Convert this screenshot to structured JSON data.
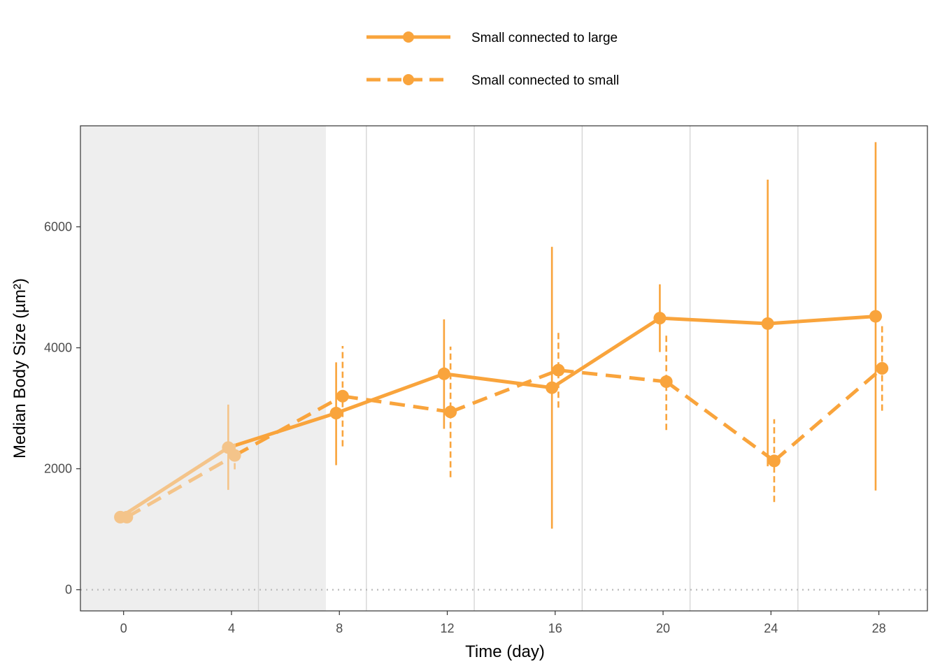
{
  "colors": {
    "series": "#f9a43c",
    "series_faded": "#f4c48a",
    "panel_border": "#333333",
    "vline": "#d3d3d3",
    "shade": "#eeeeee",
    "zero_line": "#bbbbbb"
  },
  "chart_data": {
    "type": "line",
    "xlabel": "Time (day)",
    "ylabel": "Median Body Size (µm²)",
    "xlim": [
      -1.6,
      29.8
    ],
    "ylim": [
      -350,
      7670
    ],
    "x_ticks": [
      0,
      4,
      8,
      12,
      16,
      20,
      24,
      28
    ],
    "y_ticks": [
      0,
      2000,
      4000,
      6000
    ],
    "shaded_x_range": [
      -1.6,
      7.5
    ],
    "vertical_lines_x": [
      5,
      9,
      13,
      17,
      21,
      25
    ],
    "reference_line_y": 0,
    "legend_position": "top",
    "series": [
      {
        "name": "Small connected to large",
        "line_style": "solid",
        "x": [
          0,
          4,
          8,
          12,
          16,
          20,
          24,
          28
        ],
        "y": [
          1200,
          2350,
          2920,
          3570,
          3340,
          4490,
          4400,
          4520
        ],
        "y_low": [
          null,
          1650,
          2060,
          2660,
          1010,
          3930,
          2040,
          1640
        ],
        "y_high": [
          null,
          3060,
          3760,
          4470,
          5670,
          5050,
          6780,
          7400
        ]
      },
      {
        "name": "Small connected to small",
        "line_style": "dashed",
        "x": [
          0,
          4,
          8,
          12,
          16,
          20,
          24,
          28
        ],
        "y": [
          1200,
          2220,
          3200,
          2940,
          3630,
          3440,
          2130,
          3660
        ],
        "y_low": [
          null,
          1990,
          2370,
          1860,
          3010,
          2640,
          1450,
          2960
        ],
        "y_high": [
          null,
          2430,
          4030,
          4020,
          4250,
          4250,
          2820,
          4360
        ]
      }
    ]
  }
}
